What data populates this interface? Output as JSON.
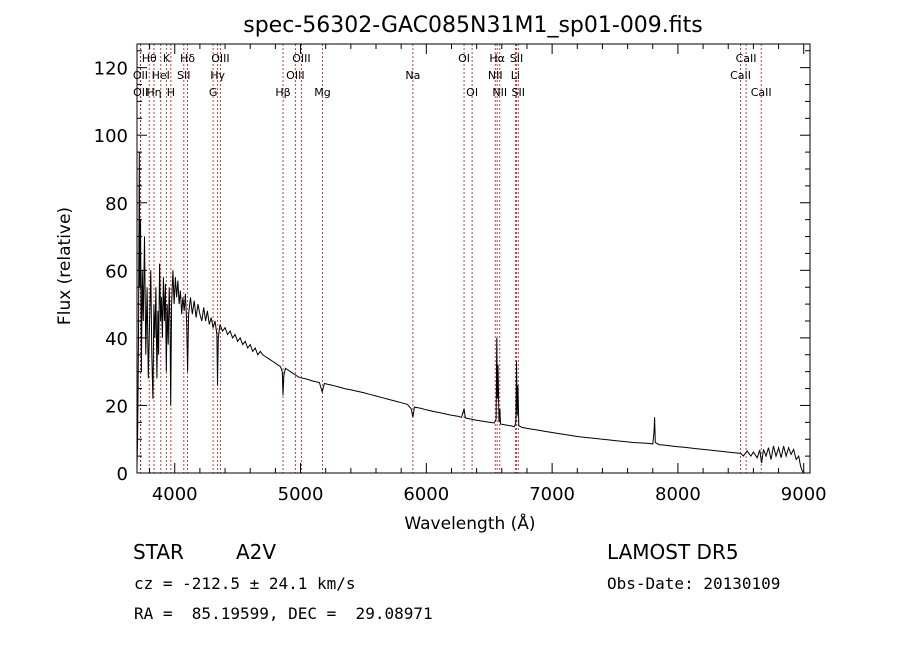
{
  "chart_data": {
    "type": "line",
    "title": "spec-56302-GAC085N31M1_sp01-009.fits",
    "xlabel": "Wavelength (Å)",
    "ylabel": "Flux (relative)",
    "xlim": [
      3700,
      9050
    ],
    "ylim": [
      0,
      127
    ],
    "xticks": [
      4000,
      5000,
      6000,
      7000,
      8000,
      9000
    ],
    "yticks": [
      0,
      20,
      40,
      60,
      80,
      100,
      120
    ],
    "grid": false,
    "series": [
      {
        "points": [
          [
            3700,
            2
          ],
          [
            3705,
            10
          ],
          [
            3712,
            40
          ],
          [
            3718,
            95
          ],
          [
            3722,
            55
          ],
          [
            3728,
            75
          ],
          [
            3735,
            30
          ],
          [
            3742,
            60
          ],
          [
            3750,
            45
          ],
          [
            3760,
            70
          ],
          [
            3770,
            35
          ],
          [
            3780,
            55
          ],
          [
            3790,
            28
          ],
          [
            3800,
            45
          ],
          [
            3810,
            60
          ],
          [
            3818,
            35
          ],
          [
            3826,
            22
          ],
          [
            3834,
            50
          ],
          [
            3842,
            40
          ],
          [
            3850,
            55
          ],
          [
            3858,
            28
          ],
          [
            3866,
            48
          ],
          [
            3872,
            35
          ],
          [
            3880,
            62
          ],
          [
            3888,
            45
          ],
          [
            3895,
            52
          ],
          [
            3902,
            40
          ],
          [
            3910,
            58
          ],
          [
            3918,
            45
          ],
          [
            3926,
            56
          ],
          [
            3933,
            30
          ],
          [
            3940,
            50
          ],
          [
            3948,
            38
          ],
          [
            3956,
            55
          ],
          [
            3962,
            45
          ],
          [
            3968,
            20
          ],
          [
            3975,
            50
          ],
          [
            3985,
            60
          ],
          [
            3995,
            50
          ],
          [
            4005,
            58
          ],
          [
            4015,
            52
          ],
          [
            4025,
            57
          ],
          [
            4035,
            50
          ],
          [
            4045,
            54
          ],
          [
            4055,
            47
          ],
          [
            4065,
            52
          ],
          [
            4075,
            48
          ],
          [
            4085,
            53
          ],
          [
            4095,
            44
          ],
          [
            4102,
            30
          ],
          [
            4110,
            47
          ],
          [
            4125,
            52
          ],
          [
            4140,
            47
          ],
          [
            4155,
            51
          ],
          [
            4170,
            46
          ],
          [
            4185,
            50
          ],
          [
            4200,
            47
          ],
          [
            4215,
            45
          ],
          [
            4230,
            49
          ],
          [
            4245,
            45
          ],
          [
            4260,
            48
          ],
          [
            4275,
            44
          ],
          [
            4290,
            46
          ],
          [
            4305,
            43
          ],
          [
            4320,
            45
          ],
          [
            4335,
            41
          ],
          [
            4340,
            26
          ],
          [
            4346,
            40
          ],
          [
            4360,
            44
          ],
          [
            4380,
            42
          ],
          [
            4400,
            43
          ],
          [
            4420,
            41
          ],
          [
            4440,
            42
          ],
          [
            4460,
            40
          ],
          [
            4480,
            41
          ],
          [
            4500,
            39
          ],
          [
            4520,
            40
          ],
          [
            4540,
            38
          ],
          [
            4560,
            39
          ],
          [
            4580,
            37
          ],
          [
            4600,
            38
          ],
          [
            4620,
            36
          ],
          [
            4640,
            37
          ],
          [
            4660,
            35
          ],
          [
            4680,
            36
          ],
          [
            4700,
            35
          ],
          [
            4720,
            34.5
          ],
          [
            4740,
            34
          ],
          [
            4760,
            33.5
          ],
          [
            4780,
            33
          ],
          [
            4800,
            32.5
          ],
          [
            4820,
            32
          ],
          [
            4840,
            31.5
          ],
          [
            4855,
            30
          ],
          [
            4861,
            23
          ],
          [
            4868,
            29
          ],
          [
            4880,
            31
          ],
          [
            4900,
            30.5
          ],
          [
            4920,
            30
          ],
          [
            4940,
            29.5
          ],
          [
            4960,
            29
          ],
          [
            4980,
            28.5
          ],
          [
            5000,
            28.2
          ],
          [
            5050,
            27.8
          ],
          [
            5100,
            27.2
          ],
          [
            5150,
            26.8
          ],
          [
            5172,
            24
          ],
          [
            5190,
            26.5
          ],
          [
            5250,
            26
          ],
          [
            5300,
            25.5
          ],
          [
            5350,
            25
          ],
          [
            5400,
            24.6
          ],
          [
            5450,
            24.2
          ],
          [
            5500,
            23.8
          ],
          [
            5550,
            23.3
          ],
          [
            5600,
            22.8
          ],
          [
            5650,
            22.3
          ],
          [
            5700,
            21.8
          ],
          [
            5750,
            21.3
          ],
          [
            5800,
            20.8
          ],
          [
            5850,
            20.3
          ],
          [
            5880,
            19
          ],
          [
            5893,
            16.5
          ],
          [
            5905,
            19.5
          ],
          [
            5950,
            19.2
          ],
          [
            6000,
            18.7
          ],
          [
            6050,
            18.3
          ],
          [
            6100,
            17.9
          ],
          [
            6150,
            17.5
          ],
          [
            6200,
            17.1
          ],
          [
            6250,
            16.8
          ],
          [
            6280,
            16.5
          ],
          [
            6300,
            19
          ],
          [
            6310,
            16.3
          ],
          [
            6350,
            16
          ],
          [
            6400,
            15.6
          ],
          [
            6450,
            15.3
          ],
          [
            6500,
            15
          ],
          [
            6540,
            14.8
          ],
          [
            6555,
            16
          ],
          [
            6560,
            40
          ],
          [
            6565,
            22
          ],
          [
            6570,
            32
          ],
          [
            6578,
            15
          ],
          [
            6585,
            19
          ],
          [
            6590,
            14.5
          ],
          [
            6620,
            14.3
          ],
          [
            6650,
            14.1
          ],
          [
            6680,
            13.9
          ],
          [
            6700,
            13.7
          ],
          [
            6712,
            15
          ],
          [
            6717,
            33
          ],
          [
            6722,
            17
          ],
          [
            6728,
            26
          ],
          [
            6735,
            14
          ],
          [
            6760,
            13.5
          ],
          [
            6800,
            13.2
          ],
          [
            6850,
            12.9
          ],
          [
            6900,
            12.6
          ],
          [
            6950,
            12.3
          ],
          [
            7000,
            12
          ],
          [
            7050,
            11.7
          ],
          [
            7100,
            11.4
          ],
          [
            7150,
            11.1
          ],
          [
            7200,
            10.8
          ],
          [
            7250,
            10.6
          ],
          [
            7300,
            10.4
          ],
          [
            7350,
            10.2
          ],
          [
            7400,
            10
          ],
          [
            7450,
            9.8
          ],
          [
            7500,
            9.6
          ],
          [
            7550,
            9.4
          ],
          [
            7600,
            9.2
          ],
          [
            7650,
            9
          ],
          [
            7700,
            8.9
          ],
          [
            7750,
            8.8
          ],
          [
            7800,
            8.6
          ],
          [
            7810,
            12
          ],
          [
            7815,
            16.5
          ],
          [
            7820,
            9
          ],
          [
            7850,
            8.4
          ],
          [
            7900,
            8.2
          ],
          [
            7950,
            8
          ],
          [
            8000,
            7.8
          ],
          [
            8050,
            7.6
          ],
          [
            8100,
            7.4
          ],
          [
            8150,
            7.2
          ],
          [
            8200,
            7
          ],
          [
            8250,
            6.8
          ],
          [
            8300,
            6.6
          ],
          [
            8350,
            6.4
          ],
          [
            8400,
            6.2
          ],
          [
            8450,
            6
          ],
          [
            8500,
            5.8
          ],
          [
            8520,
            5
          ],
          [
            8550,
            6.5
          ],
          [
            8580,
            5
          ],
          [
            8600,
            6.2
          ],
          [
            8630,
            4.5
          ],
          [
            8650,
            6.8
          ],
          [
            8665,
            3
          ],
          [
            8680,
            7
          ],
          [
            8700,
            5
          ],
          [
            8720,
            7.5
          ],
          [
            8740,
            4
          ],
          [
            8760,
            8
          ],
          [
            8780,
            5
          ],
          [
            8800,
            7.5
          ],
          [
            8820,
            4.5
          ],
          [
            8840,
            8
          ],
          [
            8860,
            5
          ],
          [
            8880,
            7.5
          ],
          [
            8900,
            5.5
          ],
          [
            8920,
            7
          ],
          [
            8940,
            4
          ],
          [
            8960,
            5
          ],
          [
            8975,
            2
          ],
          [
            8990,
            0.5
          ],
          [
            9000,
            0
          ]
        ]
      }
    ],
    "lines": [
      {
        "label": "Hθ",
        "x": 3797,
        "row": 1
      },
      {
        "label": "OII",
        "x": 3727,
        "row": 2
      },
      {
        "label": "OII",
        "x": 3729,
        "row": 3
      },
      {
        "label": "HeI",
        "x": 3889,
        "row": 2
      },
      {
        "label": "Hη",
        "x": 3835,
        "row": 3
      },
      {
        "label": "K",
        "x": 3934,
        "row": 1
      },
      {
        "label": "H",
        "x": 3969,
        "row": 3
      },
      {
        "label": "Hδ",
        "x": 4102,
        "row": 1
      },
      {
        "label": "SII",
        "x": 4072,
        "row": 2
      },
      {
        "label": "OIII",
        "x": 4363,
        "row": 1
      },
      {
        "label": "Hγ",
        "x": 4341,
        "row": 2
      },
      {
        "label": "G",
        "x": 4305,
        "row": 3
      },
      {
        "label": "Hβ",
        "x": 4861,
        "row": 3
      },
      {
        "label": "OIII",
        "x": 5007,
        "row": 1
      },
      {
        "label": "OIII",
        "x": 4959,
        "row": 2
      },
      {
        "label": "Mg",
        "x": 5175,
        "row": 3
      },
      {
        "label": "Na",
        "x": 5893,
        "row": 2
      },
      {
        "label": "OI",
        "x": 6300,
        "row": 1
      },
      {
        "label": "OI",
        "x": 6364,
        "row": 3
      },
      {
        "label": "Hα",
        "x": 6563,
        "row": 1
      },
      {
        "label": "NII",
        "x": 6548,
        "row": 2
      },
      {
        "label": "NII",
        "x": 6584,
        "row": 3
      },
      {
        "label": "SII",
        "x": 6717,
        "row": 1
      },
      {
        "label": "Li",
        "x": 6708,
        "row": 2
      },
      {
        "label": "SII",
        "x": 6731,
        "row": 3
      },
      {
        "label": "CaII",
        "x": 8542,
        "row": 1
      },
      {
        "label": "CaII",
        "x": 8498,
        "row": 2
      },
      {
        "label": "CaII",
        "x": 8662,
        "row": 3
      }
    ]
  },
  "info": {
    "object_class": "STAR",
    "subclass": "A2V",
    "survey": "LAMOST DR5",
    "cz": "cz = -212.5 ± 24.1 km/s",
    "obs_date": "Obs-Date: 20130109",
    "coords": "RA =  85.19599, DEC =  29.08971"
  }
}
